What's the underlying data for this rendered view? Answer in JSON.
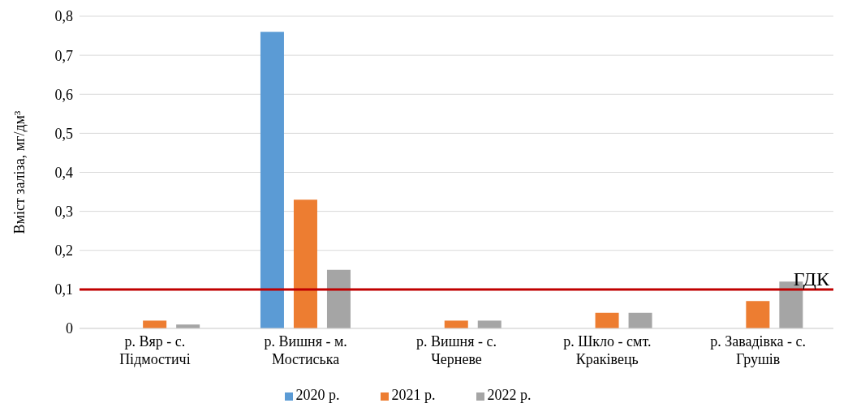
{
  "chart_data": {
    "type": "bar",
    "ylabel": "Вміст заліза, мг/дм³",
    "categories": [
      "р. Вяр - с. Підмостичі",
      "р. Вишня - м. Мостиська",
      "р. Вишня - с. Черневе",
      "р. Шкло - смт. Краківець",
      "р. Завадівка - с. Грушів"
    ],
    "series": [
      {
        "name": "2020 р.",
        "color": "#5b9bd5",
        "values": [
          null,
          0.76,
          null,
          null,
          null
        ]
      },
      {
        "name": "2021 р.",
        "color": "#ed7d31",
        "values": [
          0.02,
          0.33,
          0.02,
          0.04,
          0.07
        ]
      },
      {
        "name": "2022 р.",
        "color": "#a5a5a5",
        "values": [
          0.01,
          0.15,
          0.02,
          0.04,
          0.12
        ]
      }
    ],
    "ylim": [
      0,
      0.8
    ],
    "yticks": [
      0,
      {
        "value": 0.1,
        "label": "0,1"
      },
      {
        "value": 0.2,
        "label": "0,2"
      },
      {
        "value": 0.3,
        "label": "0,3"
      },
      {
        "value": 0.4,
        "label": "0,4"
      },
      {
        "value": 0.5,
        "label": "0,5"
      },
      {
        "value": 0.6,
        "label": "0,6"
      },
      {
        "value": 0.7,
        "label": "0,7"
      },
      {
        "value": 0.8,
        "label": "0,8"
      }
    ],
    "ref_lines": [
      {
        "axis": "y",
        "value": 0.1,
        "label": "ГДК",
        "color": "#c00000"
      }
    ],
    "grid": "y",
    "legend": "bottom"
  }
}
